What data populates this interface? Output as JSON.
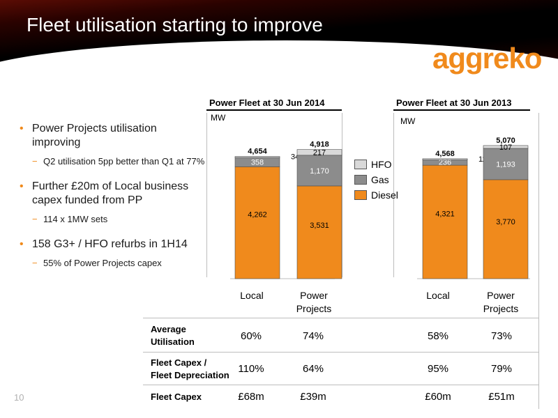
{
  "slide": {
    "title": "Fleet utilisation starting to improve",
    "logo_text": "aggreko",
    "page_number": "10",
    "colors": {
      "accent": "#f08a1c",
      "diesel": "#f08a1c",
      "gas": "#8c8c8c",
      "hfo": "#d9d9d9"
    }
  },
  "bullets": [
    {
      "text": "Power Projects utilisation improving",
      "sub": [
        "Q2 utilisation 5pp better than Q1 at 77%"
      ]
    },
    {
      "text": "Further £20m of Local business capex funded from PP",
      "sub": [
        "114 x 1MW sets"
      ]
    },
    {
      "text": "158 G3+ / HFO refurbs in 1H14",
      "sub": [
        "55% of Power Projects capex"
      ]
    }
  ],
  "chart_data": [
    {
      "type": "bar",
      "stacked": true,
      "title": "Power Fleet at 30 Jun 2014",
      "ylabel": "MW",
      "categories": [
        "Local",
        "Power Projects"
      ],
      "series": [
        {
          "name": "Diesel",
          "values": [
            4262,
            3531
          ]
        },
        {
          "name": "Gas",
          "values": [
            358,
            1170
          ]
        },
        {
          "name": "HFO",
          "values": [
            34,
            217
          ]
        }
      ],
      "totals": [
        4654,
        4918
      ],
      "labels": {
        "diesel": [
          "4,262",
          "3,531"
        ],
        "gas": [
          "358",
          "1,170"
        ],
        "hfo": [
          "34",
          "217"
        ],
        "totals": [
          "4,654",
          "4,918"
        ]
      },
      "ylim": [
        0,
        5200
      ]
    },
    {
      "type": "bar",
      "stacked": true,
      "title": "Power Fleet at 30 Jun 2013",
      "ylabel": "MW",
      "categories": [
        "Local",
        "Power Projects"
      ],
      "series": [
        {
          "name": "Diesel",
          "values": [
            4321,
            3770
          ]
        },
        {
          "name": "Gas",
          "values": [
            236,
            1193
          ]
        },
        {
          "name": "HFO",
          "values": [
            11,
            107
          ]
        }
      ],
      "totals": [
        4568,
        5070
      ],
      "labels": {
        "diesel": [
          "4,321",
          "3,770"
        ],
        "gas": [
          "236",
          "1,193"
        ],
        "hfo": [
          "11",
          "107"
        ],
        "totals": [
          "4,568",
          "5,070"
        ]
      },
      "ylim": [
        0,
        5200
      ]
    }
  ],
  "legend": [
    "HFO",
    "Gas",
    "Diesel"
  ],
  "category_labels": {
    "local": "Local",
    "pp_line1": "Power",
    "pp_line2": "Projects"
  },
  "table": {
    "rows": [
      {
        "label1": "Average",
        "label2": "Utilisation",
        "values": [
          "60%",
          "74%",
          "58%",
          "73%"
        ]
      },
      {
        "label1": "Fleet Capex /",
        "label2": "Fleet Depreciation",
        "values": [
          "110%",
          "64%",
          "95%",
          "79%"
        ]
      },
      {
        "label1": "Fleet Capex",
        "label2": "",
        "values": [
          "£68m",
          "£39m",
          "£60m",
          "£51m"
        ]
      }
    ]
  }
}
